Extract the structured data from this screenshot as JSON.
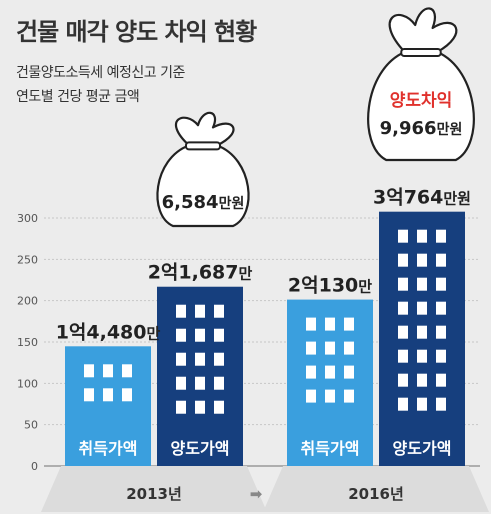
{
  "header": {
    "title": "건물 매각 양도 차익 현황",
    "subtitle_line1": "건물양도소득세 예정신고 기준",
    "subtitle_line2": "연도별 건당 평균 금액"
  },
  "colors": {
    "acquisition": "#3a9fde",
    "transfer": "#163f7e",
    "window": "#ffffff",
    "background": "#ececec"
  },
  "chart_data": {
    "type": "bar",
    "ylim": [
      0,
      300
    ],
    "yticks": [
      0,
      50,
      100,
      150,
      200,
      250,
      300
    ],
    "grid": true,
    "groups": [
      {
        "year": "2013년",
        "bars": [
          {
            "name": "취득가액",
            "value": 144.8,
            "label_main": "1억4,480",
            "label_unit": "만",
            "color": "acquisition"
          },
          {
            "name": "양도가액",
            "value": 216.87,
            "label_main": "2억1,687",
            "label_unit": "만",
            "color": "transfer"
          }
        ],
        "gain": {
          "label_main": "6,584",
          "label_unit": "만원"
        }
      },
      {
        "year": "2016년",
        "bars": [
          {
            "name": "취득가액",
            "value": 201.3,
            "label_main": "2억130",
            "label_unit": "만",
            "color": "acquisition"
          },
          {
            "name": "양도가액",
            "value": 307.64,
            "label_main": "3억764",
            "label_unit": "만원",
            "color": "transfer"
          }
        ],
        "gain": {
          "title": "양도차익",
          "label_main": "9,966",
          "label_unit": "만원"
        }
      }
    ],
    "arrow": "➡"
  }
}
